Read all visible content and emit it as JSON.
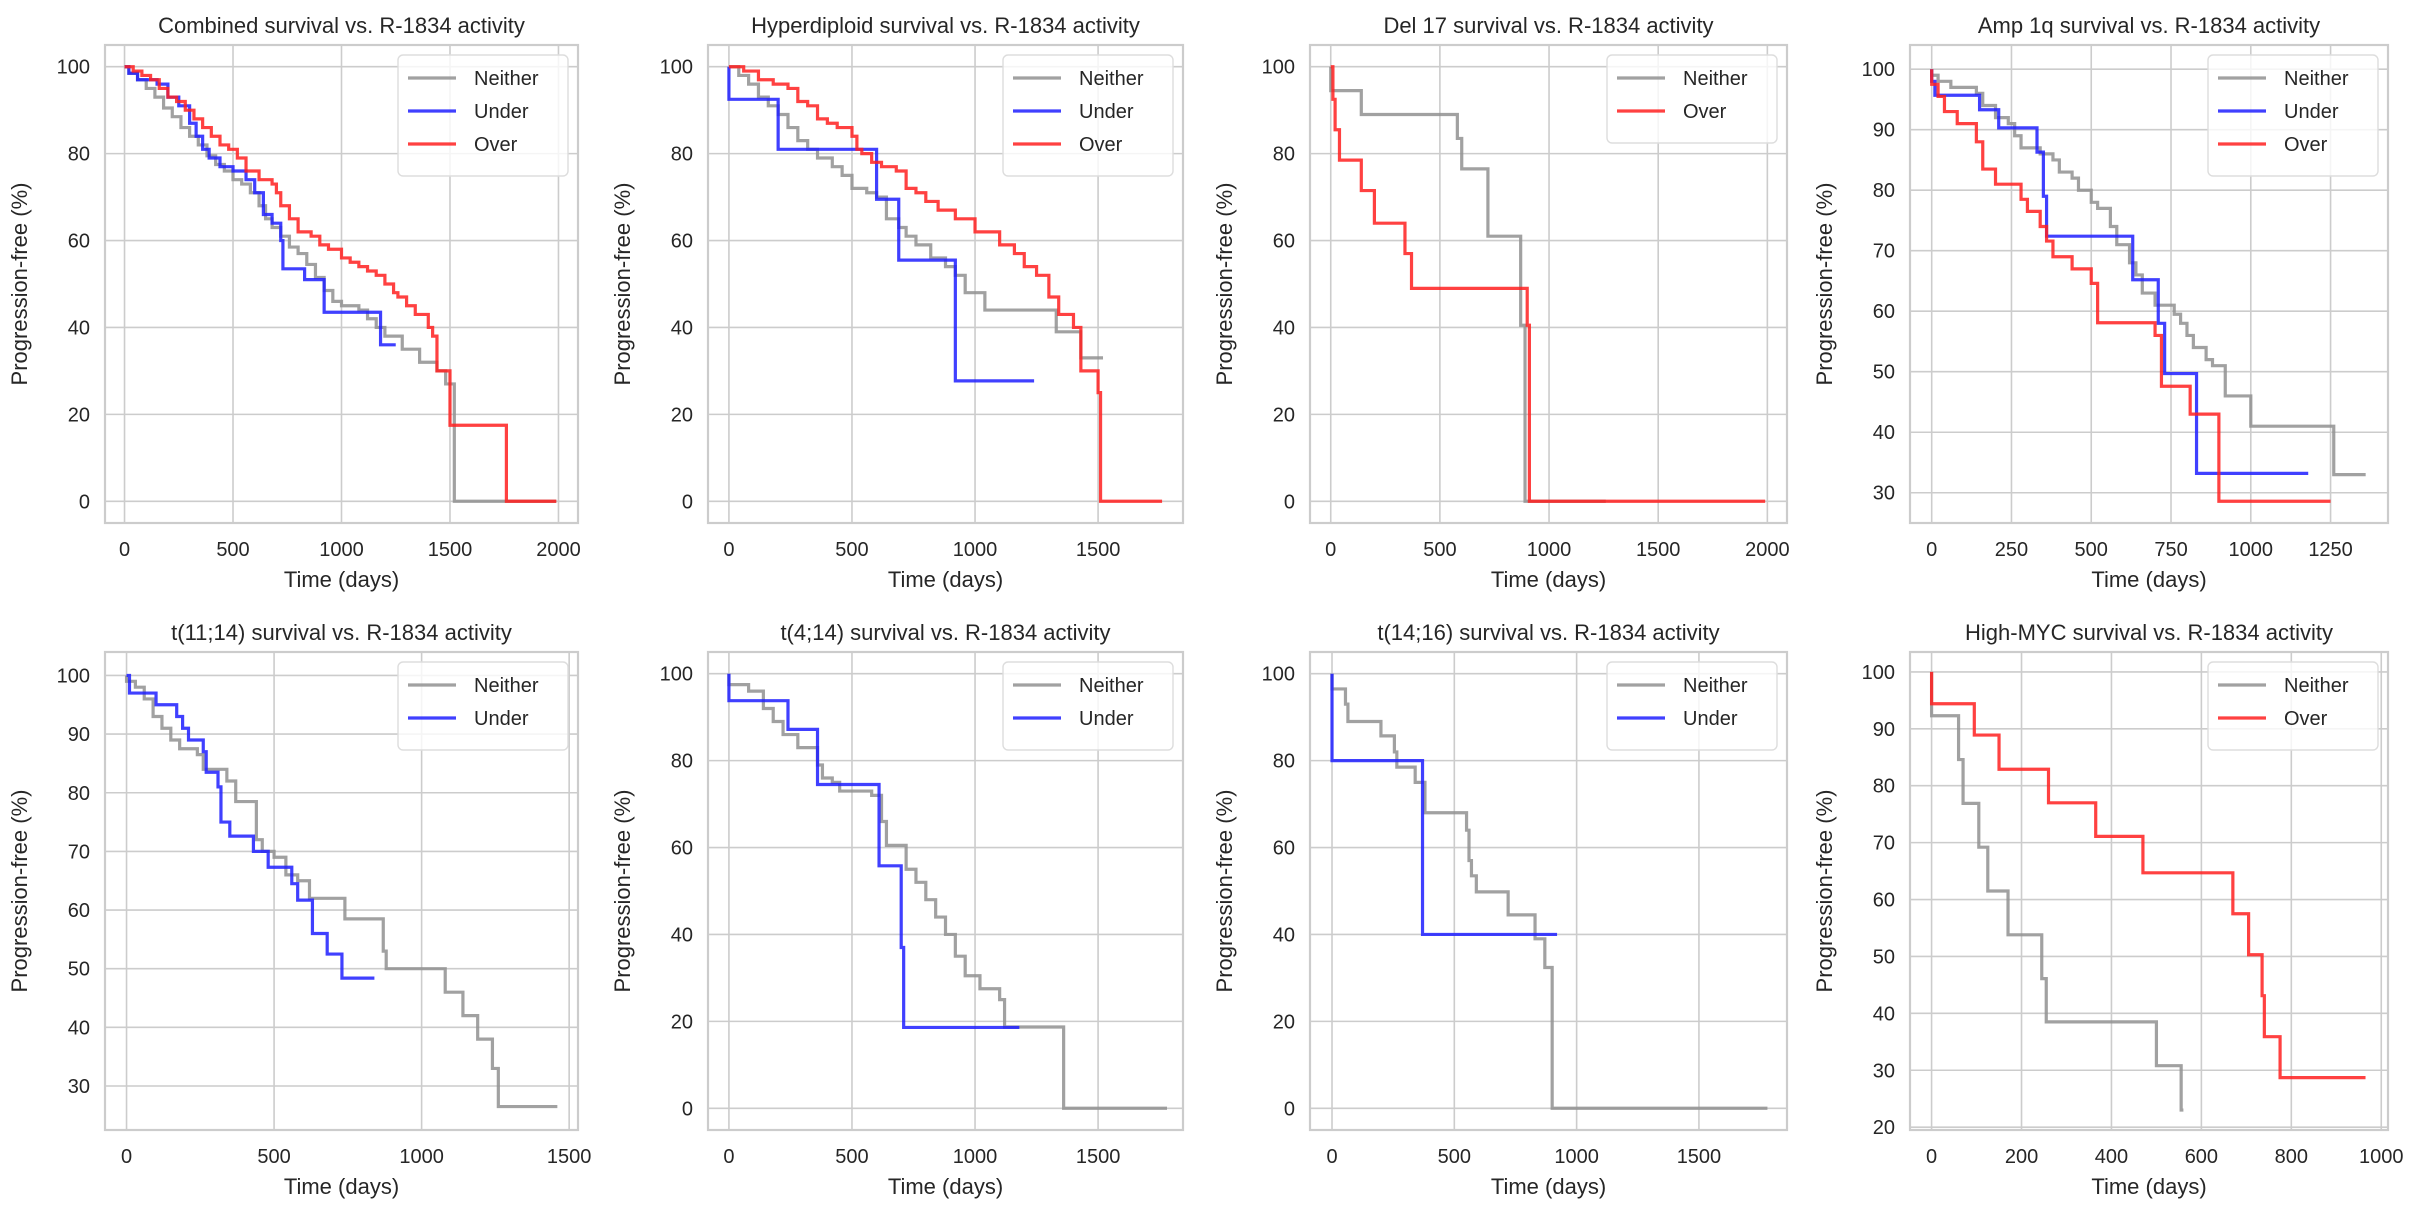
{
  "figure": {
    "palette": {
      "Neither": "#909090",
      "Under": "#1f1fff",
      "Over": "#ff2020"
    },
    "grid_color": "#cccccc",
    "spine_color": "#cccccc"
  },
  "chart_data": [
    {
      "type": "line",
      "title": "Combined survival vs. R-1834 activity",
      "xlabel": "Time (days)",
      "ylabel": "Progression-free (%)",
      "xlim": [
        -90,
        2090
      ],
      "ylim": [
        -5,
        105
      ],
      "xticks": [
        0,
        500,
        1000,
        1500,
        2000
      ],
      "yticks": [
        0,
        20,
        40,
        60,
        80,
        100
      ],
      "grid": true,
      "legend": "top-right",
      "series": [
        {
          "name": "Neither",
          "x": [
            0,
            20,
            60,
            100,
            140,
            180,
            220,
            260,
            300,
            340,
            380,
            420,
            460,
            500,
            540,
            580,
            620,
            650,
            680,
            720,
            760,
            800,
            840,
            880,
            920,
            960,
            1000,
            1040,
            1080,
            1120,
            1160,
            1200,
            1240,
            1280,
            1320,
            1360,
            1400,
            1440,
            1480,
            1510,
            1520,
            1990
          ],
          "y": [
            100,
            98.5,
            97,
            95,
            93,
            90.5,
            88.5,
            86,
            84,
            82,
            79.5,
            77.5,
            76,
            74,
            73,
            71,
            68,
            65,
            63,
            61,
            58.5,
            57,
            54.5,
            51.5,
            48.5,
            46,
            45,
            45,
            44,
            42,
            40,
            38,
            38,
            35,
            35,
            32,
            32,
            30,
            27,
            27,
            0,
            0
          ]
        },
        {
          "name": "Under",
          "x": [
            0,
            20,
            60,
            150,
            200,
            250,
            300,
            330,
            360,
            390,
            440,
            500,
            560,
            600,
            640,
            680,
            720,
            730,
            830,
            920,
            1170,
            1180,
            1250
          ],
          "y": [
            100,
            98.5,
            97,
            96,
            93,
            91,
            87,
            84,
            81,
            79,
            77,
            76,
            74,
            71,
            66,
            64,
            60,
            53.5,
            51,
            43.5,
            43.5,
            36,
            36
          ]
        },
        {
          "name": "Over",
          "x": [
            0,
            40,
            80,
            120,
            160,
            200,
            240,
            280,
            320,
            360,
            400,
            440,
            480,
            520,
            560,
            620,
            680,
            700,
            720,
            760,
            800,
            860,
            900,
            940,
            1000,
            1040,
            1080,
            1120,
            1160,
            1200,
            1240,
            1260,
            1300,
            1340,
            1400,
            1420,
            1440,
            1500,
            1760,
            1990
          ],
          "y": [
            100,
            99,
            98,
            97,
            95,
            93,
            92,
            90,
            88,
            86,
            84,
            82,
            81,
            79,
            76,
            74,
            73,
            71,
            68,
            65,
            62,
            61,
            59,
            58,
            56,
            55,
            54,
            53,
            52,
            50,
            48,
            47,
            45,
            43,
            40,
            38,
            30,
            17.5,
            0,
            0
          ]
        }
      ]
    },
    {
      "type": "line",
      "title": "Hyperdiploid survival vs. R-1834 activity",
      "xlabel": "Time (days)",
      "ylabel": "Progression-free (%)",
      "xlim": [
        -85,
        1845
      ],
      "ylim": [
        -5,
        105
      ],
      "xticks": [
        0,
        500,
        1000,
        1500
      ],
      "yticks": [
        0,
        20,
        40,
        60,
        80,
        100
      ],
      "grid": true,
      "legend": "top-right",
      "series": [
        {
          "name": "Neither",
          "x": [
            0,
            40,
            80,
            120,
            160,
            200,
            240,
            280,
            320,
            360,
            420,
            460,
            500,
            560,
            600,
            640,
            690,
            720,
            760,
            820,
            880,
            920,
            960,
            1040,
            1330,
            1430,
            1520
          ],
          "y": [
            100,
            98,
            96,
            93,
            91,
            89,
            86,
            83,
            81,
            79,
            77,
            75,
            72,
            71,
            70,
            65,
            63,
            61,
            59,
            56,
            54,
            52,
            48,
            44,
            39,
            33,
            33
          ]
        },
        {
          "name": "Under",
          "x": [
            0,
            200,
            600,
            690,
            920,
            1240
          ],
          "y": [
            92.5,
            81,
            69.5,
            55.5,
            27.7,
            27.7
          ]
        },
        {
          "name": "Over",
          "x": [
            0,
            60,
            120,
            180,
            240,
            280,
            320,
            360,
            400,
            440,
            500,
            520,
            540,
            580,
            620,
            680,
            720,
            760,
            800,
            850,
            920,
            1000,
            1100,
            1160,
            1200,
            1250,
            1300,
            1340,
            1400,
            1430,
            1500,
            1510,
            1760
          ],
          "y": [
            100,
            99,
            97,
            96,
            95,
            92,
            91,
            88,
            87,
            86,
            84,
            81,
            80,
            78,
            77,
            76,
            72,
            71,
            69,
            67,
            65,
            62,
            59,
            57,
            54,
            52,
            47,
            43,
            40,
            30,
            25,
            0,
            0
          ]
        }
      ]
    },
    {
      "type": "line",
      "title": "Del 17 survival vs. R-1834 activity",
      "xlabel": "Time (days)",
      "ylabel": "Progression-free (%)",
      "xlim": [
        -95,
        2090
      ],
      "ylim": [
        -5,
        105
      ],
      "xticks": [
        0,
        500,
        1000,
        1500,
        2000
      ],
      "yticks": [
        0,
        20,
        40,
        60,
        80,
        100
      ],
      "grid": true,
      "legend": "top-right",
      "series": [
        {
          "name": "Neither",
          "x": [
            0,
            140,
            580,
            600,
            720,
            870,
            890,
            1260
          ],
          "y": [
            94.5,
            89,
            83.5,
            76.5,
            61,
            40.5,
            0,
            0
          ]
        },
        {
          "name": "Over",
          "x": [
            0,
            10,
            20,
            40,
            140,
            200,
            340,
            370,
            900,
            910,
            1990
          ],
          "y": [
            100,
            92.5,
            85.5,
            78.5,
            71.5,
            64,
            57,
            49,
            40.5,
            0,
            0
          ]
        }
      ]
    },
    {
      "type": "line",
      "title": "Amp 1q survival vs. R-1834 activity",
      "xlabel": "Time (days)",
      "ylabel": "Progression-free (%)",
      "xlim": [
        -68,
        1430
      ],
      "ylim": [
        25,
        104
      ],
      "xticks": [
        0,
        250,
        500,
        750,
        1000,
        1250
      ],
      "yticks": [
        30,
        40,
        50,
        60,
        70,
        80,
        90,
        100
      ],
      "grid": true,
      "legend": "top-right",
      "series": [
        {
          "name": "Neither",
          "x": [
            0,
            20,
            60,
            140,
            160,
            200,
            240,
            260,
            280,
            340,
            380,
            400,
            440,
            460,
            500,
            520,
            560,
            580,
            620,
            640,
            660,
            700,
            760,
            780,
            800,
            820,
            860,
            880,
            920,
            1000,
            1260,
            1360
          ],
          "y": [
            99,
            98,
            97,
            96,
            94,
            92,
            91,
            89,
            87,
            86,
            85,
            83,
            82,
            80,
            78,
            77,
            74,
            71,
            68,
            66,
            63,
            61,
            59.5,
            58,
            56,
            54,
            52,
            51,
            46,
            41,
            33,
            33
          ]
        },
        {
          "name": "Under",
          "x": [
            0,
            10,
            150,
            210,
            330,
            350,
            360,
            630,
            710,
            730,
            830,
            1180
          ],
          "y": [
            98,
            95.7,
            93.3,
            90.3,
            86.3,
            79,
            72.4,
            65.2,
            58,
            49.7,
            33.2,
            33.2
          ]
        },
        {
          "name": "Over",
          "x": [
            0,
            20,
            40,
            80,
            140,
            160,
            200,
            280,
            300,
            340,
            360,
            380,
            440,
            500,
            520,
            700,
            720,
            740,
            810,
            900,
            1250
          ],
          "y": [
            97.5,
            95.5,
            93,
            91,
            88,
            83.5,
            81,
            78.5,
            76.5,
            74,
            71.6,
            69,
            67,
            64.6,
            58.1,
            56,
            47.6,
            47.6,
            43,
            28.6,
            28.6
          ]
        }
      ]
    },
    {
      "type": "line",
      "title": "t(11;14) survival vs. R-1834 activity",
      "xlabel": "Time (days)",
      "ylabel": "Progression-free (%)",
      "xlim": [
        -73,
        1530
      ],
      "ylim": [
        22.5,
        104
      ],
      "xticks": [
        0,
        500,
        1000,
        1500
      ],
      "yticks": [
        30,
        40,
        50,
        60,
        70,
        80,
        90,
        100
      ],
      "grid": true,
      "legend": "top-right",
      "series": [
        {
          "name": "Neither",
          "x": [
            0,
            30,
            60,
            90,
            120,
            150,
            180,
            240,
            260,
            300,
            340,
            370,
            440,
            460,
            500,
            540,
            580,
            620,
            700,
            740,
            840,
            870,
            880,
            1080,
            1140,
            1190,
            1240,
            1260,
            1460
          ],
          "y": [
            99,
            98,
            96,
            93,
            91,
            89,
            87.5,
            86.5,
            84,
            84,
            82,
            78.5,
            72,
            70,
            69,
            66,
            65,
            62,
            62,
            58.5,
            58.5,
            53,
            50,
            46,
            42,
            38,
            33,
            26.5,
            26.5
          ]
        },
        {
          "name": "Under",
          "x": [
            0,
            10,
            100,
            170,
            190,
            210,
            260,
            270,
            310,
            320,
            350,
            430,
            480,
            560,
            580,
            630,
            680,
            730,
            840
          ],
          "y": [
            100,
            97,
            95,
            93,
            91,
            89,
            87,
            83.5,
            81,
            75,
            72.6,
            70,
            67.3,
            64.5,
            61.7,
            56,
            52.5,
            48.4,
            48.4
          ]
        }
      ]
    },
    {
      "type": "line",
      "title": "t(4;14) survival vs. R-1834 activity",
      "xlabel": "Time (days)",
      "ylabel": "Progression-free (%)",
      "xlim": [
        -85,
        1845
      ],
      "ylim": [
        -5,
        105
      ],
      "xticks": [
        0,
        500,
        1000,
        1500
      ],
      "yticks": [
        0,
        20,
        40,
        60,
        80,
        100
      ],
      "grid": true,
      "legend": "top-right",
      "series": [
        {
          "name": "Neither",
          "x": [
            0,
            80,
            140,
            180,
            220,
            280,
            360,
            380,
            420,
            450,
            580,
            620,
            640,
            700,
            720,
            760,
            800,
            840,
            880,
            920,
            960,
            1020,
            1100,
            1120,
            1360,
            1780
          ],
          "y": [
            97.5,
            96,
            92,
            89,
            86,
            83,
            79,
            76,
            75,
            73,
            72,
            66,
            60.5,
            60.5,
            55,
            52,
            48,
            44,
            40,
            35,
            30.5,
            27.5,
            25,
            18.7,
            0,
            0
          ]
        },
        {
          "name": "Under",
          "x": [
            0,
            240,
            360,
            610,
            700,
            710,
            1180
          ],
          "y": [
            93.8,
            87.2,
            74.5,
            55.8,
            37,
            18.6,
            18.6
          ]
        }
      ]
    },
    {
      "type": "line",
      "title": "t(14;16) survival vs. R-1834 activity",
      "xlabel": "Time (days)",
      "ylabel": "Progression-free (%)",
      "xlim": [
        -90,
        1860
      ],
      "ylim": [
        -5,
        105
      ],
      "xticks": [
        0,
        500,
        1000,
        1500
      ],
      "yticks": [
        0,
        20,
        40,
        60,
        80,
        100
      ],
      "grid": true,
      "legend": "top-right",
      "series": [
        {
          "name": "Neither",
          "x": [
            0,
            55,
            65,
            200,
            255,
            265,
            340,
            380,
            550,
            560,
            570,
            590,
            720,
            830,
            870,
            900,
            1780
          ],
          "y": [
            96.5,
            93,
            89,
            85.7,
            82,
            78.5,
            75,
            68,
            64,
            57,
            53.5,
            49.8,
            44.5,
            39,
            32.4,
            0,
            0
          ]
        },
        {
          "name": "Under",
          "x": [
            0,
            370,
            920
          ],
          "y": [
            80,
            40,
            40
          ]
        }
      ]
    },
    {
      "type": "line",
      "title": "High-MYC survival vs. R-1834 activity",
      "xlabel": "Time (days)",
      "ylabel": "Progression-free (%)",
      "xlim": [
        -48,
        1015
      ],
      "ylim": [
        19.5,
        103.5
      ],
      "xticks": [
        0,
        200,
        400,
        600,
        800,
        1000
      ],
      "yticks": [
        20,
        30,
        40,
        50,
        60,
        70,
        80,
        90,
        100
      ],
      "grid": true,
      "legend": "top-right",
      "series": [
        {
          "name": "Neither",
          "x": [
            0,
            60,
            70,
            105,
            125,
            170,
            245,
            255,
            500,
            555,
            560
          ],
          "y": [
            92.3,
            84.6,
            76.9,
            69.2,
            61.5,
            53.8,
            46.1,
            38.5,
            30.8,
            23,
            23
          ]
        },
        {
          "name": "Over",
          "x": [
            0,
            95,
            150,
            260,
            365,
            470,
            670,
            705,
            735,
            740,
            775,
            965
          ],
          "y": [
            94.4,
            88.9,
            82.9,
            77,
            71.1,
            64.7,
            57.5,
            50.3,
            43.1,
            35.9,
            28.7,
            28.7
          ]
        }
      ]
    }
  ]
}
